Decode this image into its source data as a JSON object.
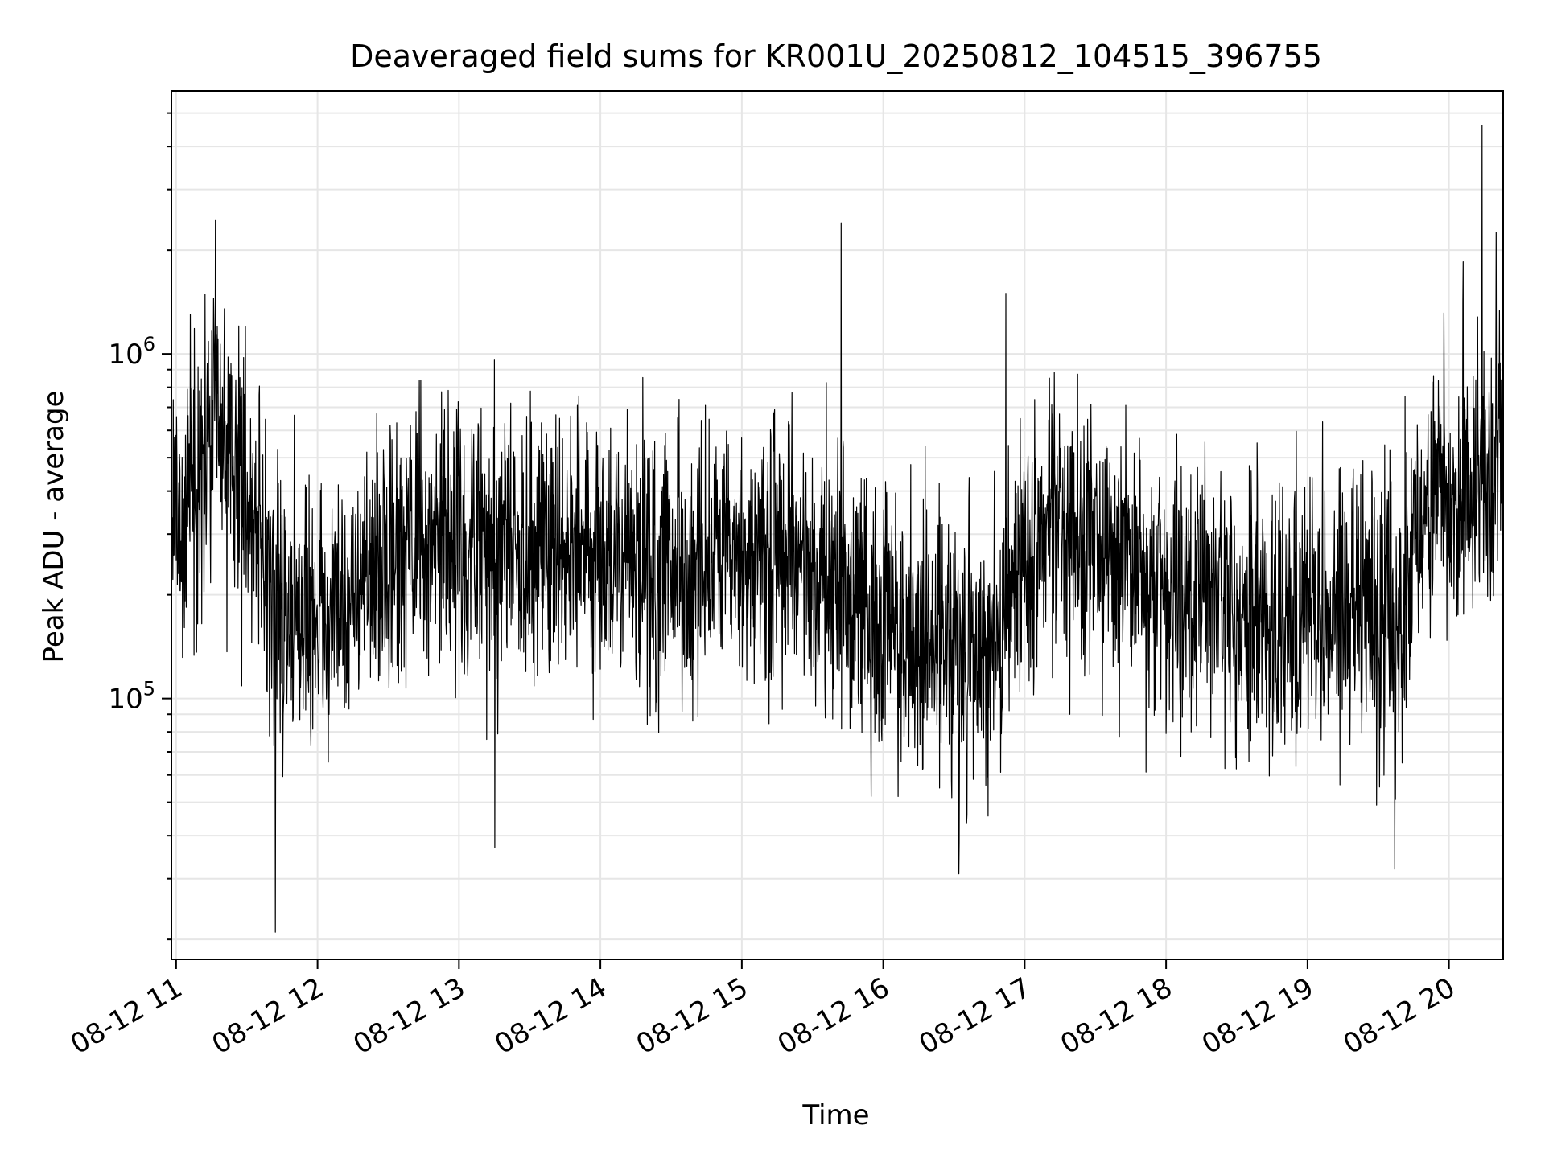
{
  "chart_data": {
    "type": "line",
    "title": "Deaveraged field sums for KR001U_20250812_104515_396755",
    "xlabel": "Time",
    "ylabel": "Peak ADU - average",
    "x_tick_labels": [
      "08-12 11",
      "08-12 12",
      "08-12 13",
      "08-12 14",
      "08-12 15",
      "08-12 16",
      "08-12 17",
      "08-12 18",
      "08-12 19",
      "08-12 20"
    ],
    "y_tick_labels": [
      {
        "base": "10",
        "exp": "5",
        "value": 100000
      },
      {
        "base": "10",
        "exp": "6",
        "value": 1000000
      }
    ],
    "xlim": [
      "2025-08-12 10:58",
      "2025-08-12 20:23"
    ],
    "ylim": [
      17500,
      5800000
    ],
    "y_scale": "log",
    "grid": true,
    "line_color": "#000000",
    "grid_color": "#e6e6e6",
    "series": [
      {
        "x": [
          "2025-08-12 10:58",
          "2025-08-12 11:08",
          "2025-08-12 11:16",
          "2025-08-12 11:26",
          "2025-08-12 11:35",
          "2025-08-12 11:41",
          "2025-08-12 11:50",
          "2025-08-12 12:00",
          "2025-08-12 12:15",
          "2025-08-12 12:30",
          "2025-08-12 12:45",
          "2025-08-12 13:00",
          "2025-08-12 13:15",
          "2025-08-12 13:30",
          "2025-08-12 13:45",
          "2025-08-12 14:00",
          "2025-08-12 14:20",
          "2025-08-12 14:40",
          "2025-08-12 15:00",
          "2025-08-12 15:20",
          "2025-08-12 15:40",
          "2025-08-12 16:00",
          "2025-08-12 16:20",
          "2025-08-12 16:40",
          "2025-08-12 16:50",
          "2025-08-12 17:00",
          "2025-08-12 17:15",
          "2025-08-12 17:30",
          "2025-08-12 17:45",
          "2025-08-12 18:00",
          "2025-08-12 18:20",
          "2025-08-12 18:40",
          "2025-08-12 19:00",
          "2025-08-12 19:20",
          "2025-08-12 19:38",
          "2025-08-12 19:45",
          "2025-08-12 19:55",
          "2025-08-12 20:05",
          "2025-08-12 20:15",
          "2025-08-12 20:23"
        ],
        "y": [
          300000,
          420000,
          600000,
          480000,
          330000,
          190000,
          170000,
          170000,
          200000,
          250000,
          290000,
          270000,
          280000,
          290000,
          300000,
          260000,
          240000,
          230000,
          240000,
          260000,
          210000,
          170000,
          150000,
          130000,
          170000,
          250000,
          330000,
          270000,
          250000,
          200000,
          180000,
          180000,
          170000,
          180000,
          160000,
          260000,
          380000,
          400000,
          480000,
          620000
        ]
      }
    ],
    "spikes": [
      {
        "x": "2025-08-12 15:42",
        "y": 2400000
      },
      {
        "x": "2025-08-12 16:52",
        "y": 1500000
      },
      {
        "x": "2025-08-12 20:14",
        "y": 4600000
      },
      {
        "x": "2025-08-12 20:06",
        "y": 1850000
      },
      {
        "x": "2025-08-12 20:20",
        "y": 2250000
      },
      {
        "x": "2025-08-12 11:06",
        "y": 1300000
      },
      {
        "x": "2025-08-12 11:42",
        "y": 21000
      },
      {
        "x": "2025-08-12 13:15",
        "y": 960000
      },
      {
        "x": "2025-08-12 13:15",
        "y": 37000
      },
      {
        "x": "2025-08-12 16:32",
        "y": 31000
      },
      {
        "x": "2025-08-12 19:37",
        "y": 32000
      }
    ]
  }
}
